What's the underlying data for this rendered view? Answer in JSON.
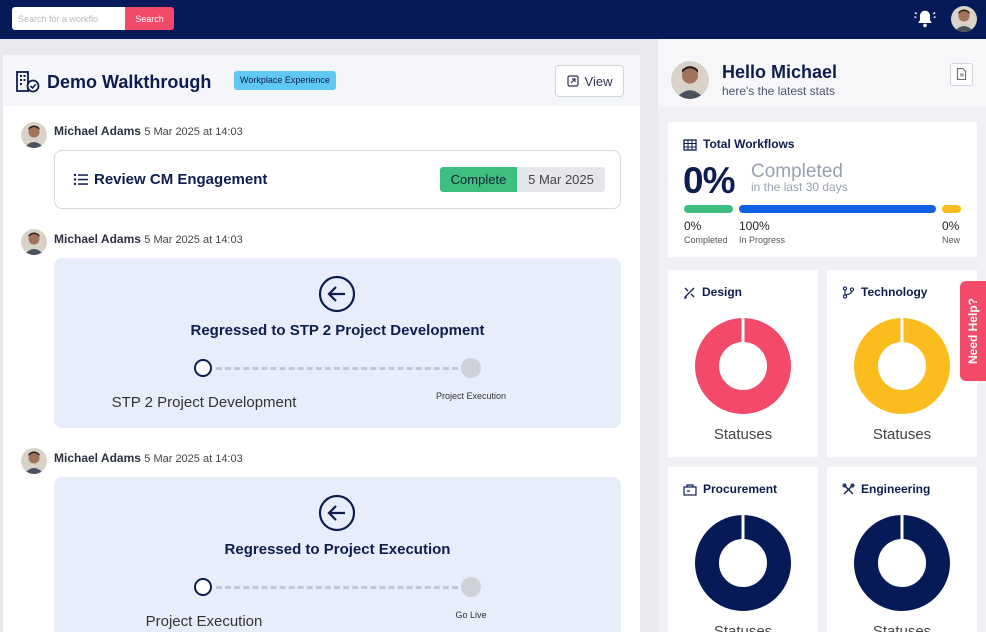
{
  "topbar": {
    "search_placeholder": "Search for a workflo",
    "search_button": "Search",
    "bell_icon": "bell-icon",
    "avatar_icon": "user-avatar"
  },
  "walkthrough": {
    "title": "Demo Walkthrough",
    "badge": "Workplace Experience",
    "view_button": "View",
    "entries": [
      {
        "author": "Michael Adams",
        "timestamp": "5 Mar 2025 at 14:03",
        "task_title": "Review CM Engagement",
        "status": "Complete",
        "status_date": "5 Mar 2025"
      },
      {
        "author": "Michael Adams",
        "timestamp": "5 Mar 2025 at 14:03",
        "title": "Regressed to STP 2 Project Development",
        "from_stage": "STP 2 Project Development",
        "to_stage": "Project Execution"
      },
      {
        "author": "Michael Adams",
        "timestamp": "5 Mar 2025 at 14:03",
        "title": "Regressed to Project Execution",
        "from_stage": "Project Execution",
        "to_stage": "Go Live"
      }
    ]
  },
  "dashboard": {
    "greeting": "Hello Michael",
    "subtitle": "here's the latest stats",
    "total_workflows": {
      "title": "Total Workflows",
      "percent": "0%",
      "completed_label": "Completed",
      "period": "in the last 30 days",
      "breakdown": [
        {
          "value": "0%",
          "label": "Completed",
          "fraction": 0,
          "color": "#3fbf7f"
        },
        {
          "value": "100%",
          "label": "In Progress",
          "fraction": 1,
          "color": "#1260e6"
        },
        {
          "value": "0%",
          "label": "New",
          "fraction": 0,
          "color": "#fbbd1e"
        }
      ]
    },
    "categories": [
      {
        "name": "Design",
        "icon": "design-tools-icon",
        "caption": "Statuses",
        "color": "#f24a68"
      },
      {
        "name": "Technology",
        "icon": "git-branch-icon",
        "caption": "Statuses",
        "color": "#fbbd1e"
      },
      {
        "name": "Procurement",
        "icon": "procurement-icon",
        "caption": "Statuses",
        "color": "#071a58"
      },
      {
        "name": "Engineering",
        "icon": "engineering-tools-icon",
        "caption": "Statuses",
        "color": "#071a58"
      }
    ]
  },
  "help_tab": "Need Help?"
}
